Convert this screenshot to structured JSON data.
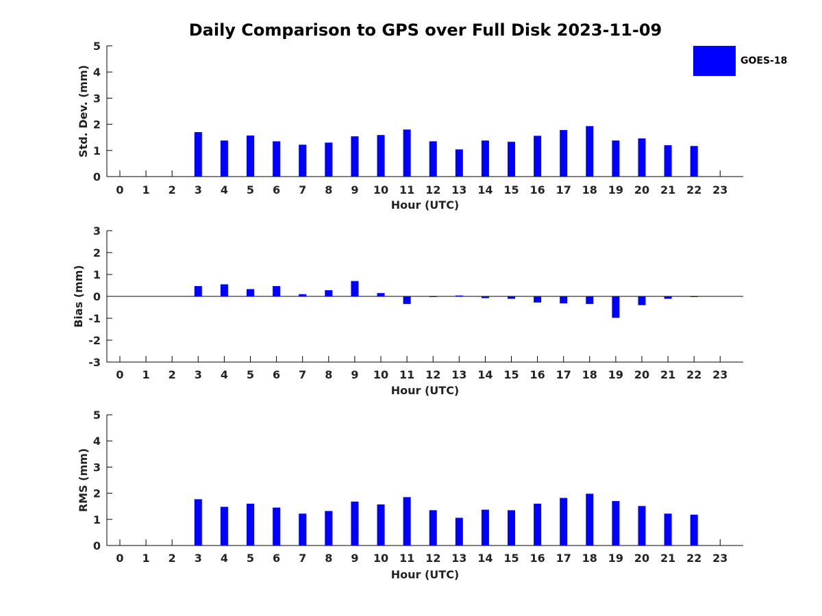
{
  "title": "Daily Comparison to GPS over Full Disk 2023-11-09",
  "legend": {
    "label": "GOES-18",
    "color": "#0000ff"
  },
  "chart_data": [
    {
      "type": "bar",
      "ylabel": "Std. Dev. (mm)",
      "xlabel": "Hour (UTC)",
      "ylim": [
        0,
        5
      ],
      "yticks": [
        0,
        1,
        2,
        3,
        4,
        5
      ],
      "categories": [
        "0",
        "1",
        "2",
        "3",
        "4",
        "5",
        "6",
        "7",
        "8",
        "9",
        "10",
        "11",
        "12",
        "13",
        "14",
        "15",
        "16",
        "17",
        "18",
        "19",
        "20",
        "21",
        "22",
        "23"
      ],
      "series": [
        {
          "name": "GOES-18",
          "values": [
            null,
            null,
            null,
            1.7,
            1.38,
            1.57,
            1.35,
            1.22,
            1.3,
            1.54,
            1.59,
            1.8,
            1.35,
            1.04,
            1.38,
            1.33,
            1.56,
            1.78,
            1.93,
            1.38,
            1.46,
            1.2,
            1.17,
            null
          ]
        }
      ]
    },
    {
      "type": "bar",
      "ylabel": "Bias (mm)",
      "xlabel": "Hour (UTC)",
      "ylim": [
        -3,
        3
      ],
      "yticks": [
        -3,
        -2,
        -1,
        0,
        1,
        2,
        3
      ],
      "zero_line": true,
      "categories": [
        "0",
        "1",
        "2",
        "3",
        "4",
        "5",
        "6",
        "7",
        "8",
        "9",
        "10",
        "11",
        "12",
        "13",
        "14",
        "15",
        "16",
        "17",
        "18",
        "19",
        "20",
        "21",
        "22",
        "23"
      ],
      "series": [
        {
          "name": "GOES-18",
          "values": [
            null,
            null,
            null,
            0.47,
            0.55,
            0.33,
            0.47,
            0.1,
            0.28,
            0.7,
            0.15,
            -0.35,
            -0.02,
            0.04,
            -0.08,
            -0.11,
            -0.28,
            -0.32,
            -0.35,
            -0.98,
            -0.4,
            -0.11,
            -0.02,
            null
          ]
        }
      ]
    },
    {
      "type": "bar",
      "ylabel": "RMS (mm)",
      "xlabel": "Hour (UTC)",
      "ylim": [
        0,
        5
      ],
      "yticks": [
        0,
        1,
        2,
        3,
        4,
        5
      ],
      "categories": [
        "0",
        "1",
        "2",
        "3",
        "4",
        "5",
        "6",
        "7",
        "8",
        "9",
        "10",
        "11",
        "12",
        "13",
        "14",
        "15",
        "16",
        "17",
        "18",
        "19",
        "20",
        "21",
        "22",
        "23"
      ],
      "series": [
        {
          "name": "GOES-18",
          "values": [
            null,
            null,
            null,
            1.77,
            1.48,
            1.6,
            1.45,
            1.22,
            1.32,
            1.68,
            1.57,
            1.85,
            1.35,
            1.06,
            1.37,
            1.35,
            1.6,
            1.82,
            1.98,
            1.7,
            1.51,
            1.22,
            1.18,
            null
          ]
        }
      ]
    }
  ]
}
